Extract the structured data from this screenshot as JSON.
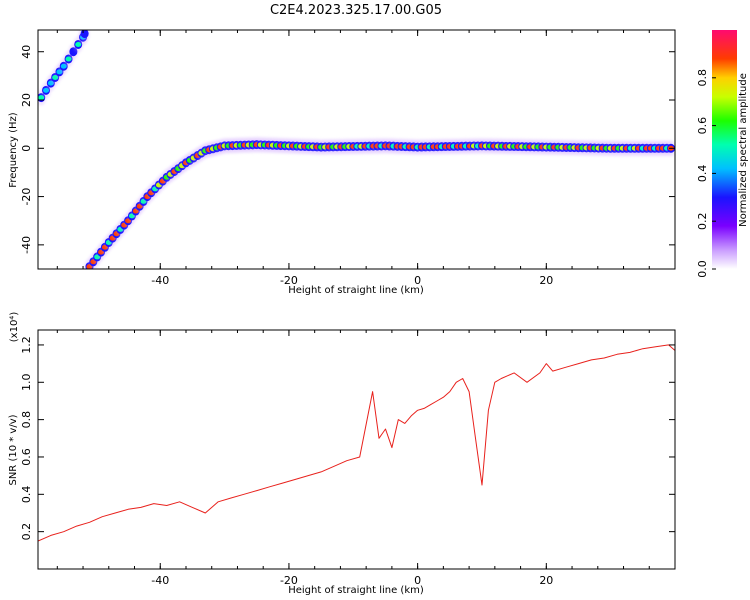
{
  "figure_title": "C2E4.2023.325.17.00.G05",
  "colors": {
    "snr_line": "#e8211c",
    "axis": "#000000"
  },
  "chart_data": [
    {
      "type": "heatmap",
      "xlabel": "Height of straight line (km)",
      "ylabel": "Frequency (Hz)",
      "xlim": [
        -59,
        40
      ],
      "ylim": [
        -50,
        49
      ],
      "xticks": [
        -40,
        -20,
        0,
        20
      ],
      "yticks": [
        -40,
        -20,
        0,
        20,
        40
      ],
      "colorbar": {
        "label": "Normalized spectral amplitude",
        "range": [
          0,
          1
        ],
        "ticks": [
          0.0,
          0.2,
          0.4,
          0.6,
          0.8
        ],
        "colormap": "rainbow (white-violet-blue-cyan-green-yellow-red-magenta)"
      },
      "traces": [
        {
          "points": [
            [
              -58.5,
              21
            ],
            [
              -57,
              27
            ],
            [
              -55,
              34
            ],
            [
              -53.5,
              40
            ],
            [
              -52,
              46
            ],
            [
              -51.5,
              49
            ]
          ],
          "peak_amplitude": 0.55
        },
        {
          "points": [
            [
              -51,
              -49
            ],
            [
              -48,
              -39
            ],
            [
              -45,
              -30
            ],
            [
              -42,
              -20
            ],
            [
              -39,
              -12
            ],
            [
              -36,
              -6
            ],
            [
              -33,
              -1
            ],
            [
              -30,
              1
            ],
            [
              -25,
              1.5
            ],
            [
              -15,
              0.5
            ],
            [
              -5,
              1
            ],
            [
              0,
              0.5
            ],
            [
              10,
              1
            ],
            [
              20,
              0.5
            ],
            [
              30,
              0
            ],
            [
              40,
              0
            ]
          ],
          "peak_amplitude": 1.0
        }
      ]
    },
    {
      "type": "line",
      "xlabel": "Height of straight line (km)",
      "ylabel": "SNR (10 * v/v)",
      "y_multiplier": "(x10⁴)",
      "xlim": [
        -59,
        40
      ],
      "ylim": [
        0.0,
        1.28
      ],
      "xticks": [
        -40,
        -20,
        0,
        20
      ],
      "yticks": [
        0.2,
        0.4,
        0.6,
        0.8,
        1.0,
        1.2
      ],
      "series": [
        {
          "x": [
            -59,
            -57,
            -55,
            -53,
            -51,
            -49,
            -47,
            -45,
            -43,
            -41,
            -39,
            -37,
            -35,
            -33,
            -31,
            -29,
            -27,
            -25,
            -23,
            -21,
            -19,
            -17,
            -15,
            -13,
            -11,
            -9,
            -7,
            -6,
            -5,
            -4,
            -3,
            -2,
            -1,
            0,
            1,
            2,
            3,
            4,
            5,
            6,
            7,
            8,
            9,
            10,
            11,
            12,
            13,
            15,
            17,
            19,
            20,
            21,
            23,
            25,
            27,
            29,
            31,
            33,
            35,
            37,
            39,
            40
          ],
          "y": [
            0.15,
            0.18,
            0.2,
            0.23,
            0.25,
            0.28,
            0.3,
            0.32,
            0.33,
            0.35,
            0.34,
            0.36,
            0.33,
            0.3,
            0.36,
            0.38,
            0.4,
            0.42,
            0.44,
            0.46,
            0.48,
            0.5,
            0.52,
            0.55,
            0.58,
            0.6,
            0.95,
            0.7,
            0.75,
            0.65,
            0.8,
            0.78,
            0.82,
            0.85,
            0.86,
            0.88,
            0.9,
            0.92,
            0.95,
            1.0,
            1.02,
            0.95,
            0.7,
            0.45,
            0.85,
            1.0,
            1.02,
            1.05,
            1.0,
            1.05,
            1.1,
            1.06,
            1.08,
            1.1,
            1.12,
            1.13,
            1.15,
            1.16,
            1.18,
            1.19,
            1.2,
            1.17
          ]
        }
      ]
    }
  ]
}
